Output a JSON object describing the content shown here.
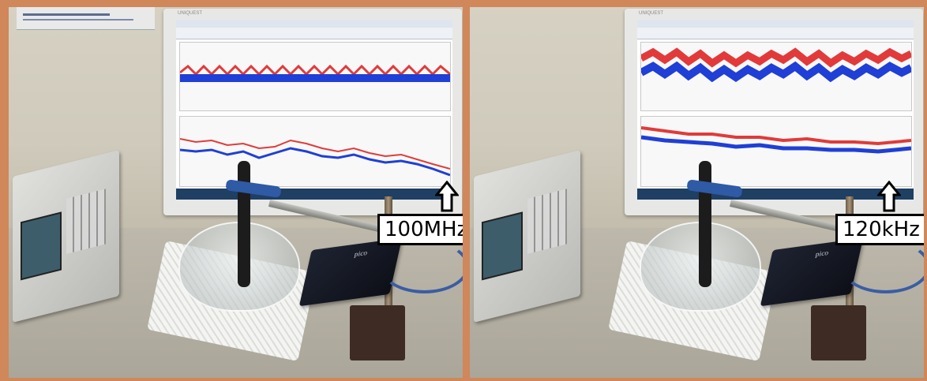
{
  "panels": [
    {
      "id": "left",
      "frequency_label": "100MHz",
      "colors": {
        "trace_red": "#e23a3a",
        "trace_blue": "#1f3fd6"
      }
    },
    {
      "id": "right",
      "frequency_label": "120kHz",
      "colors": {
        "trace_red": "#e23a3a",
        "trace_blue": "#1f3fd6"
      }
    }
  ],
  "equipment": {
    "monitor_brand": "UNIQUEST",
    "scope_brand": "pico"
  },
  "icons": [
    "up-arrow-icon"
  ]
}
